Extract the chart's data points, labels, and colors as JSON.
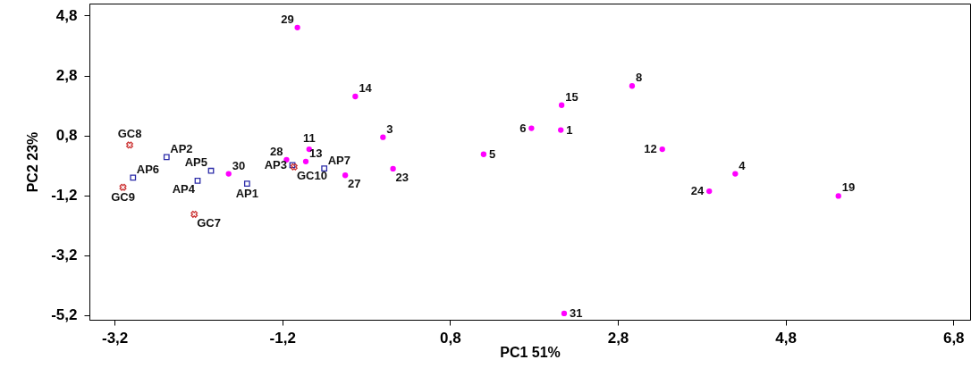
{
  "chart_data": {
    "type": "scatter",
    "xlabel": "PC1 51%",
    "ylabel": "PC2 23%",
    "xlim": [
      -3.5,
      7.0
    ],
    "ylim": [
      -5.35,
      5.2
    ],
    "xticks": [
      {
        "value": -3.2,
        "label": "-3,2"
      },
      {
        "value": -1.2,
        "label": "-1,2"
      },
      {
        "value": 0.8,
        "label": "0,8"
      },
      {
        "value": 2.8,
        "label": "2,8"
      },
      {
        "value": 4.8,
        "label": "4,8"
      },
      {
        "value": 6.8,
        "label": "6,8"
      }
    ],
    "yticks": [
      {
        "value": -5.2,
        "label": "-5,2"
      },
      {
        "value": -3.2,
        "label": "-3,2"
      },
      {
        "value": -1.2,
        "label": "-1,2"
      },
      {
        "value": 0.8,
        "label": "0,8"
      },
      {
        "value": 2.8,
        "label": "2,8"
      },
      {
        "value": 4.8,
        "label": "4,8"
      }
    ],
    "grid": false,
    "series": [
      {
        "color": "#ff00ff",
        "marker": "circle",
        "x": [
          -1.02,
          -0.33,
          -0.0,
          0.12,
          1.2,
          1.77,
          2.12,
          2.13,
          2.97,
          3.33,
          4.2,
          3.89,
          5.43,
          2.16,
          -1.84,
          -1.15,
          -0.88,
          -0.92,
          -0.45
        ],
        "values": [
          4.4,
          2.1,
          0.74,
          -0.31,
          0.17,
          1.04,
          0.98,
          1.81,
          2.45,
          0.34,
          -0.48,
          -1.06,
          -1.22,
          -5.14,
          -0.48,
          -0.01,
          0.34,
          -0.07,
          -0.53
        ]
      },
      {
        "color": "#2b2ba8",
        "marker": "square",
        "x": [
          -2.58,
          -2.98,
          -2.05,
          -2.21,
          -1.62,
          -1.08,
          -0.7
        ],
        "values": [
          0.08,
          -0.61,
          -0.38,
          -0.71,
          -0.81,
          -0.19,
          -0.3
        ]
      },
      {
        "color": "#cc3333",
        "marker": "cross",
        "x": [
          -3.02,
          -3.1,
          -2.25,
          -1.06
        ],
        "values": [
          0.48,
          -0.93,
          -1.83,
          -0.25
        ]
      }
    ],
    "annotations": [
      {
        "text": "29",
        "x": -1.02,
        "y": 4.4
      },
      {
        "text": "14",
        "x": -0.33,
        "y": 2.1
      },
      {
        "text": "3",
        "x": -0.0,
        "y": 0.74
      },
      {
        "text": "23",
        "x": 0.12,
        "y": -0.31
      },
      {
        "text": "5",
        "x": 1.2,
        "y": 0.17
      },
      {
        "text": "6",
        "x": 1.77,
        "y": 1.04
      },
      {
        "text": "1",
        "x": 2.12,
        "y": 0.98
      },
      {
        "text": "15",
        "x": 2.13,
        "y": 1.81
      },
      {
        "text": "8",
        "x": 2.97,
        "y": 2.45
      },
      {
        "text": "12",
        "x": 3.33,
        "y": 0.34
      },
      {
        "text": "4",
        "x": 4.2,
        "y": -0.48
      },
      {
        "text": "24",
        "x": 3.89,
        "y": -1.06
      },
      {
        "text": "19",
        "x": 5.43,
        "y": -1.22
      },
      {
        "text": "31",
        "x": 2.16,
        "y": -5.14
      },
      {
        "text": "30",
        "x": -1.84,
        "y": -0.48
      },
      {
        "text": "28",
        "x": -1.15,
        "y": -0.01
      },
      {
        "text": "11",
        "x": -0.88,
        "y": 0.34
      },
      {
        "text": "13",
        "x": -0.92,
        "y": -0.07
      },
      {
        "text": "27",
        "x": -0.45,
        "y": -0.53
      },
      {
        "text": "AP2",
        "x": -2.58,
        "y": 0.08
      },
      {
        "text": "AP6",
        "x": -2.98,
        "y": -0.61
      },
      {
        "text": "AP5",
        "x": -2.05,
        "y": -0.38
      },
      {
        "text": "AP4",
        "x": -2.21,
        "y": -0.71
      },
      {
        "text": "AP1",
        "x": -1.62,
        "y": -0.81
      },
      {
        "text": "AP3",
        "x": -1.08,
        "y": -0.19
      },
      {
        "text": "AP7",
        "x": -0.7,
        "y": -0.3
      },
      {
        "text": "GC8",
        "x": -3.02,
        "y": 0.48
      },
      {
        "text": "GC9",
        "x": -3.1,
        "y": -0.93
      },
      {
        "text": "GC7",
        "x": -2.25,
        "y": -1.83
      },
      {
        "text": "GC10",
        "x": -1.06,
        "y": -0.25
      }
    ]
  }
}
